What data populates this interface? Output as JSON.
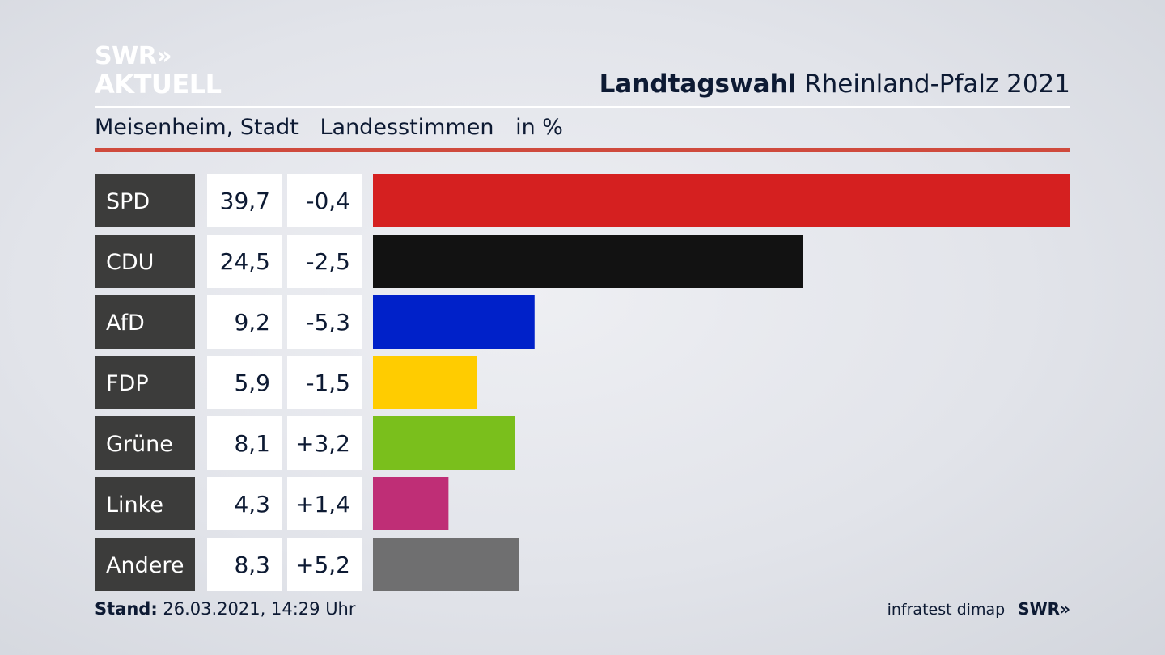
{
  "logo": {
    "line1": "SWR»",
    "line2": "AKTUELL"
  },
  "header": {
    "title_bold": "Landtagswahl",
    "title_rest": "Rheinland-Pfalz 2021"
  },
  "subtitle": {
    "place": "Meisenheim, Stadt",
    "vote_type": "Landesstimmen",
    "unit": "in %"
  },
  "footer": {
    "stand_label": "Stand:",
    "stand_value": "26.03.2021, 14:29 Uhr",
    "source": "infratest dimap",
    "brand": "SWR»"
  },
  "colors": {
    "label_bg": "#3c3c3b",
    "value_bg": "#ffffff",
    "accent_rule": "#cf4a3d"
  },
  "chart_data": {
    "type": "bar",
    "orientation": "horizontal",
    "categories": [
      "SPD",
      "CDU",
      "AfD",
      "FDP",
      "Grüne",
      "Linke",
      "Andere"
    ],
    "values": [
      39.7,
      24.5,
      9.2,
      5.9,
      8.1,
      4.3,
      8.3
    ],
    "values_text": [
      "39,7",
      "24,5",
      "9,2",
      "5,9",
      "8,1",
      "4,3",
      "8,3"
    ],
    "changes": [
      -0.4,
      -2.5,
      -5.3,
      -1.5,
      3.2,
      1.4,
      5.2
    ],
    "changes_text": [
      "-0,4",
      "-2,5",
      "-5,3",
      "-1,5",
      "+3,2",
      "+1,4",
      "+5,2"
    ],
    "colors": [
      "#d52020",
      "#121212",
      "#0021c9",
      "#ffcc00",
      "#7abf1c",
      "#bf2e76",
      "#6f6f70"
    ],
    "xlim": [
      0,
      39.7
    ],
    "grid": false,
    "legend": "none"
  }
}
